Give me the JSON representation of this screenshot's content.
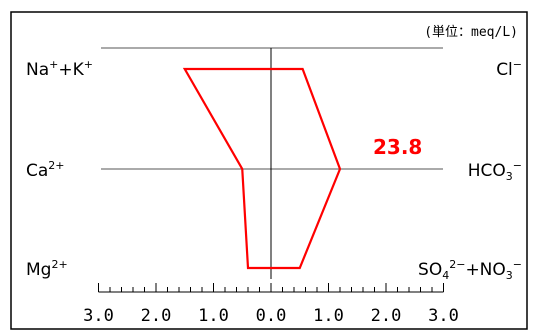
{
  "chart_data": {
    "type": "line",
    "unit_label": "(単位：meq/L)",
    "total_label": "23.8",
    "line_color": "#ff0000",
    "cation_labels": [
      {
        "base": "Na",
        "sup1": "+",
        "mid": "+K",
        "sup2": "+"
      },
      {
        "base": "Ca",
        "sup1": "2+"
      },
      {
        "base": "Mg",
        "sup1": "2+"
      }
    ],
    "anion_labels": [
      {
        "base": "Cl",
        "sup1": "−"
      },
      {
        "base": "HCO",
        "sub": "3",
        "sup1": "−"
      },
      {
        "base": "SO",
        "sub": "4",
        "sup1": "2−",
        "mid": "+NO",
        "sub2": "3",
        "sup2": "−"
      }
    ],
    "tick_labels": [
      "3.0",
      "2.0",
      "1.0",
      "0.0",
      "1.0",
      "2.0",
      "3.0"
    ],
    "xlim": [
      -3,
      3
    ],
    "cations": [
      1.5,
      0.5,
      0.4
    ],
    "anions": [
      0.55,
      1.2,
      0.5
    ]
  }
}
